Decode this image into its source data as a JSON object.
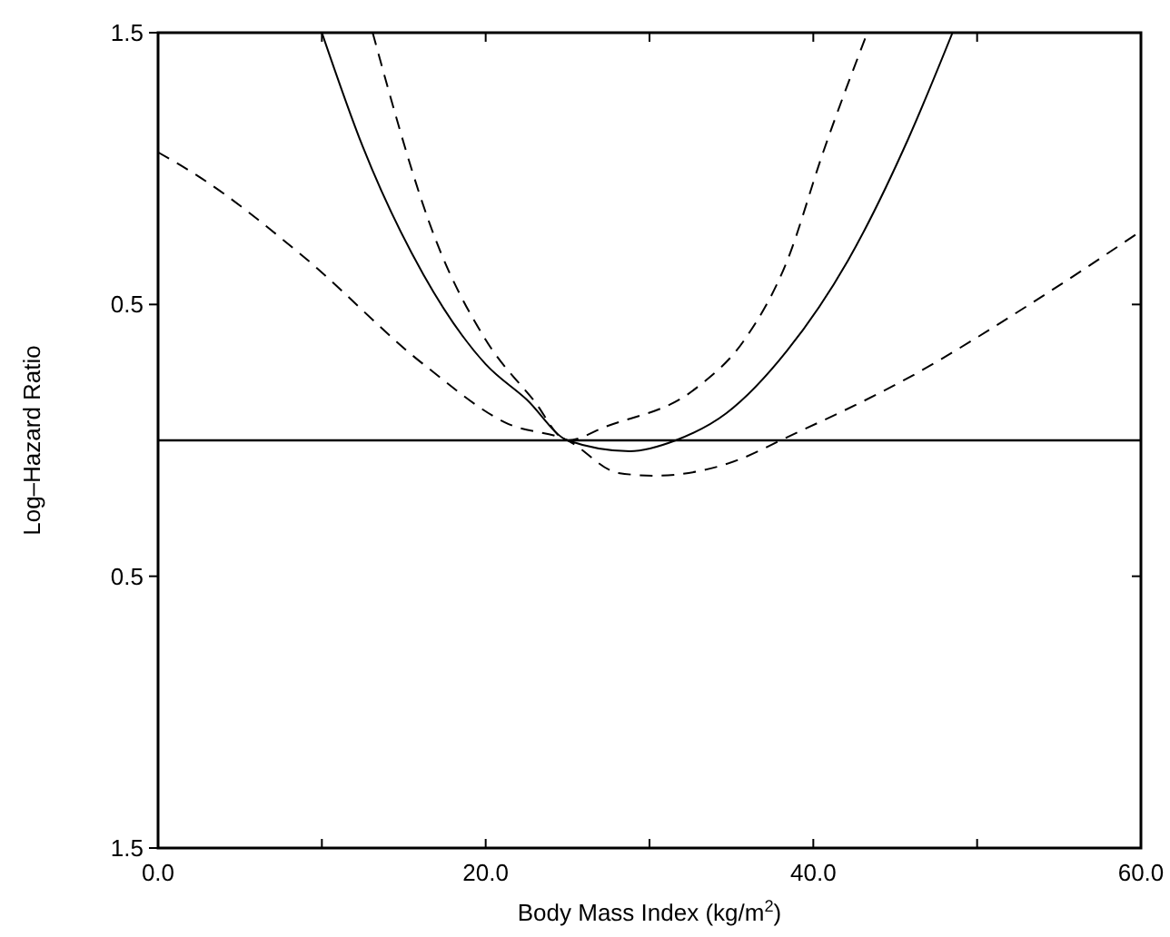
{
  "chart_data": {
    "type": "line",
    "xlabel": "Body Mass Index (kg/m$^{2}$)",
    "ylabel": "Log–Hazard Ratio",
    "xlim": [
      0,
      60
    ],
    "ylim": [
      -1.5,
      1.5
    ],
    "xticks": [
      {
        "value": 0,
        "label": "0.0"
      },
      {
        "value": 10,
        "label": null
      },
      {
        "value": 20,
        "label": "20.0"
      },
      {
        "value": 30,
        "label": null
      },
      {
        "value": 40,
        "label": "40.0"
      },
      {
        "value": 50,
        "label": null
      },
      {
        "value": 60,
        "label": "60.0"
      }
    ],
    "yticks": [
      {
        "value": -1.5,
        "label": "1.5"
      },
      {
        "value": -0.5,
        "label": "0.5"
      },
      0.5,
      1.5
    ],
    "grid": false,
    "marker": "none",
    "series": [
      {
        "color": "#000000",
        "line_style": "solid",
        "x": [
          10,
          12.5,
          16.2,
          20,
          22.5,
          25,
          28.8,
          31.6,
          34.7,
          38.4,
          42.1,
          45.8,
          48.5
        ],
        "values": [
          1.5,
          1.08,
          0.61,
          0.28,
          0.15,
          0,
          -0.04,
          0,
          0.1,
          0.33,
          0.66,
          1.11,
          1.5
        ]
      },
      {
        "color": "#000000",
        "line_style": "dashed",
        "x": [
          13.1,
          17,
          20,
          22.9,
          25,
          27.3,
          32.8,
          35.8,
          38.4,
          40.6,
          43.3
        ],
        "values": [
          1.5,
          0.73,
          0.37,
          0.15,
          0,
          0.05,
          0.19,
          0.37,
          0.66,
          1.06,
          1.5
        ]
      },
      {
        "color": "#000000",
        "line_style": "dashed",
        "x": [
          0,
          2.5,
          8.8,
          16.2,
          21.4,
          25,
          28.1,
          30.3,
          35.5,
          38,
          45.8,
          53.2,
          60
        ],
        "values": [
          1.06,
          0.97,
          0.68,
          0.28,
          0.06,
          0,
          -0.12,
          -0.13,
          -0.07,
          0,
          0.23,
          0.5,
          0.77
        ]
      }
    ],
    "ref_lines": [
      {
        "axis": "y",
        "value": 0,
        "color": "#000000",
        "line_style": "solid"
      }
    ]
  }
}
